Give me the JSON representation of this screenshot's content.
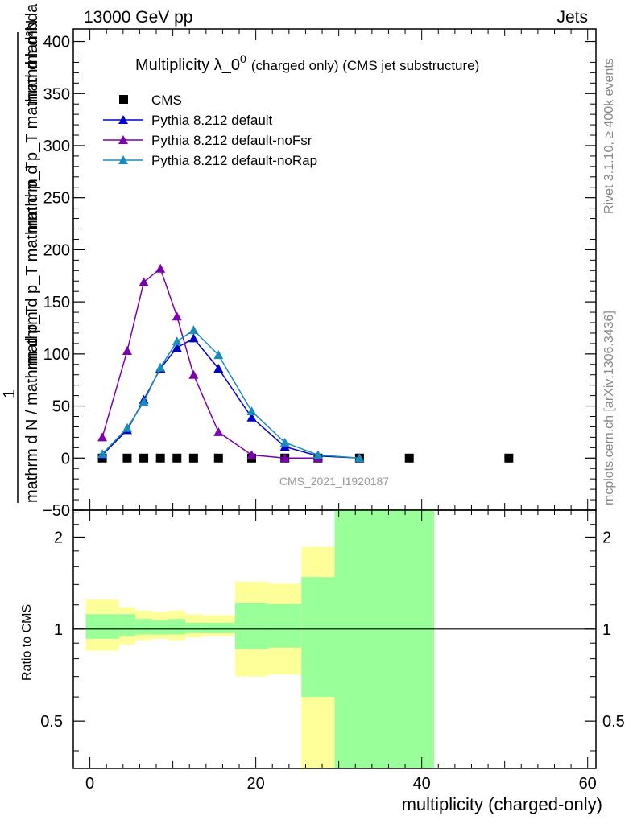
{
  "header": {
    "left": "13000 GeV pp",
    "right": "Jets"
  },
  "side_labels": {
    "rivet": "Rivet 3.1.10, ≥ 400k events",
    "mcplots": "mcplots.cern.ch [arXiv:1306.3436]"
  },
  "chart_data": [
    {
      "type": "scatter",
      "title_main": "Multiplicity λ_0",
      "title_sup": "0",
      "title_suffix": "(charged only) (CMS jet substructure)",
      "ylabel_numerator": "mathrm d²N",
      "ylabel_denominator": "mathrm d p_T mathrm d lambda",
      "ylabel_num2": "1",
      "ylabel_den2": "mathrm d N / mathrm d p_T mathrm d p_T",
      "ylabel_lines": [
        "mathrm d²N",
        "mathrm d p_T mathrm d lambda",
        "mathrm d p_T mathrm d p_T",
        "1",
        "mathrm d N / mathrm d p_T"
      ],
      "watermark": "CMS_2021_I1920187",
      "xlim": [
        -2,
        61
      ],
      "ylim": [
        -50,
        412
      ],
      "yticks": [
        -50,
        0,
        50,
        100,
        150,
        200,
        250,
        300,
        350,
        400
      ],
      "ytick_labels": [
        "−50",
        "0",
        "50",
        "100",
        "150",
        "200",
        "250",
        "300",
        "350",
        "400"
      ],
      "legend": [
        {
          "name": "CMS",
          "color": "#000000",
          "marker": "square"
        },
        {
          "name": "Pythia 8.212 default",
          "color": "#0000cc",
          "marker": "triangle"
        },
        {
          "name": "Pythia 8.212 default-noFsr",
          "color": "#7a00b0",
          "marker": "triangle"
        },
        {
          "name": "Pythia 8.212 default-noRap",
          "color": "#1a8cba",
          "marker": "triangle"
        }
      ],
      "series": [
        {
          "name": "CMS",
          "color": "#000000",
          "x": [
            1.5,
            4.5,
            6.5,
            8.5,
            10.5,
            12.5,
            15.5,
            19.5,
            23.5,
            27.5,
            32.5,
            38.5,
            50.5
          ],
          "y": [
            0,
            0,
            0,
            0,
            0,
            0,
            0,
            0,
            0,
            0,
            0,
            0,
            0
          ]
        },
        {
          "name": "Pythia 8.212 default",
          "color": "#0000cc",
          "x": [
            1.5,
            4.5,
            6.5,
            8.5,
            10.5,
            12.5,
            15.5,
            19.5,
            23.5,
            27.5,
            32.5
          ],
          "y": [
            3,
            27,
            56,
            86,
            106,
            115,
            86,
            39,
            11,
            2,
            0
          ]
        },
        {
          "name": "Pythia 8.212 default-noFsr",
          "color": "#7a00b0",
          "x": [
            1.5,
            4.5,
            6.5,
            8.5,
            10.5,
            12.5,
            15.5,
            19.5,
            23.5,
            27.5
          ],
          "y": [
            20,
            103,
            169,
            182,
            136,
            80,
            25,
            3,
            0,
            0
          ]
        },
        {
          "name": "Pythia 8.212 default-noRap",
          "color": "#1a8cba",
          "x": [
            1.5,
            4.5,
            6.5,
            8.5,
            10.5,
            12.5,
            15.5,
            19.5,
            23.5,
            27.5,
            32.5
          ],
          "y": [
            4,
            29,
            54,
            87,
            112,
            123,
            99,
            45,
            15,
            3,
            0
          ]
        }
      ]
    },
    {
      "type": "area",
      "ylabel": "Ratio to CMS",
      "xlabel": "multiplicity (charged-only)",
      "xlim": [
        -2,
        61
      ],
      "ylim": [
        0.35,
        2.45
      ],
      "xticks": [
        0,
        20,
        40,
        60
      ],
      "xtick_labels": [
        "0",
        "20",
        "40",
        "60"
      ],
      "yticks": [
        0.5,
        1,
        2
      ],
      "ytick_labels": [
        "0.5",
        "1",
        "2"
      ],
      "bands": [
        {
          "x0": -0.5,
          "x1": 3.5,
          "y_lo": 0.85,
          "y_hi": 1.25,
          "g_lo": 0.93,
          "g_hi": 1.12
        },
        {
          "x0": 3.5,
          "x1": 5.5,
          "y_lo": 0.89,
          "y_hi": 1.18,
          "g_lo": 0.95,
          "g_hi": 1.12
        },
        {
          "x0": 5.5,
          "x1": 7.5,
          "y_lo": 0.92,
          "y_hi": 1.15,
          "g_lo": 0.96,
          "g_hi": 1.08
        },
        {
          "x0": 7.5,
          "x1": 9.5,
          "y_lo": 0.93,
          "y_hi": 1.14,
          "g_lo": 0.96,
          "g_hi": 1.07
        },
        {
          "x0": 9.5,
          "x1": 11.5,
          "y_lo": 0.92,
          "y_hi": 1.15,
          "g_lo": 0.96,
          "g_hi": 1.08
        },
        {
          "x0": 11.5,
          "x1": 13.5,
          "y_lo": 0.94,
          "y_hi": 1.12,
          "g_lo": 0.97,
          "g_hi": 1.05
        },
        {
          "x0": 13.5,
          "x1": 17.5,
          "y_lo": 0.95,
          "y_hi": 1.11,
          "g_lo": 0.97,
          "g_hi": 1.05
        },
        {
          "x0": 17.5,
          "x1": 21.5,
          "y_lo": 0.7,
          "y_hi": 1.43,
          "g_lo": 0.86,
          "g_hi": 1.22
        },
        {
          "x0": 21.5,
          "x1": 25.5,
          "y_lo": 0.71,
          "y_hi": 1.41,
          "g_lo": 0.87,
          "g_hi": 1.21
        },
        {
          "x0": 25.5,
          "x1": 29.5,
          "y_lo": 0.35,
          "y_hi": 1.86,
          "g_lo": 0.6,
          "g_hi": 1.48
        },
        {
          "x0": 29.5,
          "x1": 41.5,
          "y_lo": 0.35,
          "y_hi": 2.45,
          "g_lo": 0.35,
          "g_hi": 2.45
        }
      ]
    }
  ],
  "colors": {
    "yellow": "#ffff99",
    "green": "#99ff99"
  }
}
